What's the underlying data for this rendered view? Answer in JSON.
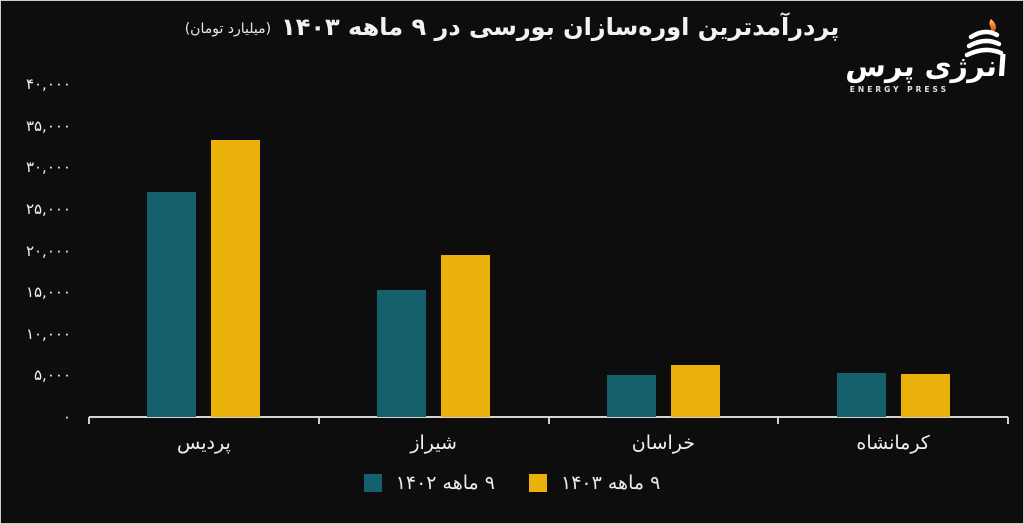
{
  "title": {
    "text": "پردرآمدترین اوره‌سازان بورسی در ۹ ماهه ۱۴۰۳",
    "unit": "(میلیارد تومان)"
  },
  "logo": {
    "wordmark": "انرژی پرس",
    "tagline": "ENERGY PRESS",
    "flame_color": "#f47b20"
  },
  "colors": {
    "background": "#0d0d0d",
    "axis": "#d4d4d4",
    "text": "#f2f2f2",
    "series_1402": "#15606d",
    "series_1403": "#eab10b"
  },
  "chart_data": {
    "type": "bar",
    "title": "پردرآمدترین اوره‌سازان بورسی در ۹ ماهه ۱۴۰۳",
    "unit_label": "میلیارد تومان",
    "categories": [
      "پردیس",
      "شیراز",
      "خراسان",
      "کرمانشاه"
    ],
    "series": [
      {
        "name": "۹ ماهه ۱۴۰۲",
        "color": "#15606d",
        "values": [
          27000,
          15200,
          5100,
          5300
        ]
      },
      {
        "name": "۹ ماهه ۱۴۰۳",
        "color": "#eab10b",
        "values": [
          33300,
          19400,
          6200,
          5200
        ]
      }
    ],
    "ylim": [
      0,
      40000
    ],
    "y_ticks": [
      {
        "value": 0,
        "label": "۰"
      },
      {
        "value": 5000,
        "label": "۵,۰۰۰"
      },
      {
        "value": 10000,
        "label": "۱۰,۰۰۰"
      },
      {
        "value": 15000,
        "label": "۱۵,۰۰۰"
      },
      {
        "value": 20000,
        "label": "۲۰,۰۰۰"
      },
      {
        "value": 25000,
        "label": "۲۵,۰۰۰"
      },
      {
        "value": 30000,
        "label": "۳۰,۰۰۰"
      },
      {
        "value": 35000,
        "label": "۳۵,۰۰۰"
      },
      {
        "value": 40000,
        "label": "۴۰,۰۰۰"
      }
    ],
    "grid": false,
    "legend_position": "bottom"
  }
}
